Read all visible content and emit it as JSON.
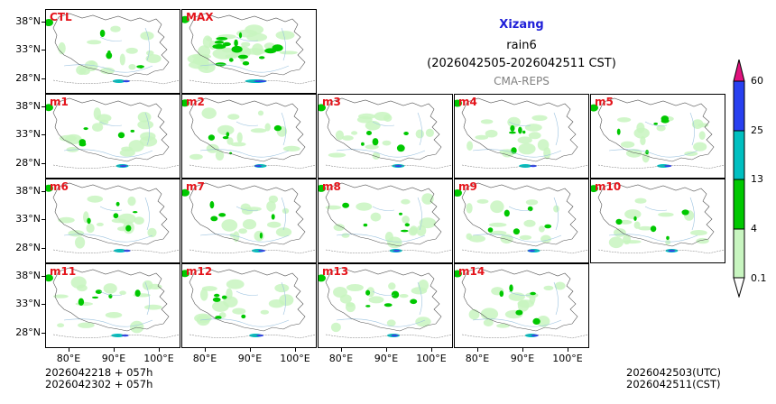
{
  "title": {
    "region": "Xizang",
    "variable": "rain6",
    "period": "(2026042505-2026042511 CST)",
    "source": "CMA-REPS"
  },
  "lat_ticks": [
    "38°N",
    "33°N",
    "28°N"
  ],
  "lon_ticks": [
    "80°E",
    "90°E",
    "100°E"
  ],
  "members": [
    "CTL",
    "MAX",
    "m1",
    "m2",
    "m3",
    "m4",
    "m5",
    "m6",
    "m7",
    "m8",
    "m9",
    "m10",
    "m11",
    "m12",
    "m13",
    "m14"
  ],
  "colorbar": {
    "levels": [
      "0.1",
      "4",
      "13",
      "25",
      "60"
    ],
    "colors": [
      "#c8f5c0",
      "#00c800",
      "#00bfc0",
      "#2840f0",
      "#e0127d"
    ]
  },
  "footer": {
    "init_utc": "2026042218  +  057h",
    "init_cst": "2026042302  +  057h",
    "valid_utc": "2026042503(UTC)",
    "valid_cst": "2026042511(CST)"
  }
}
